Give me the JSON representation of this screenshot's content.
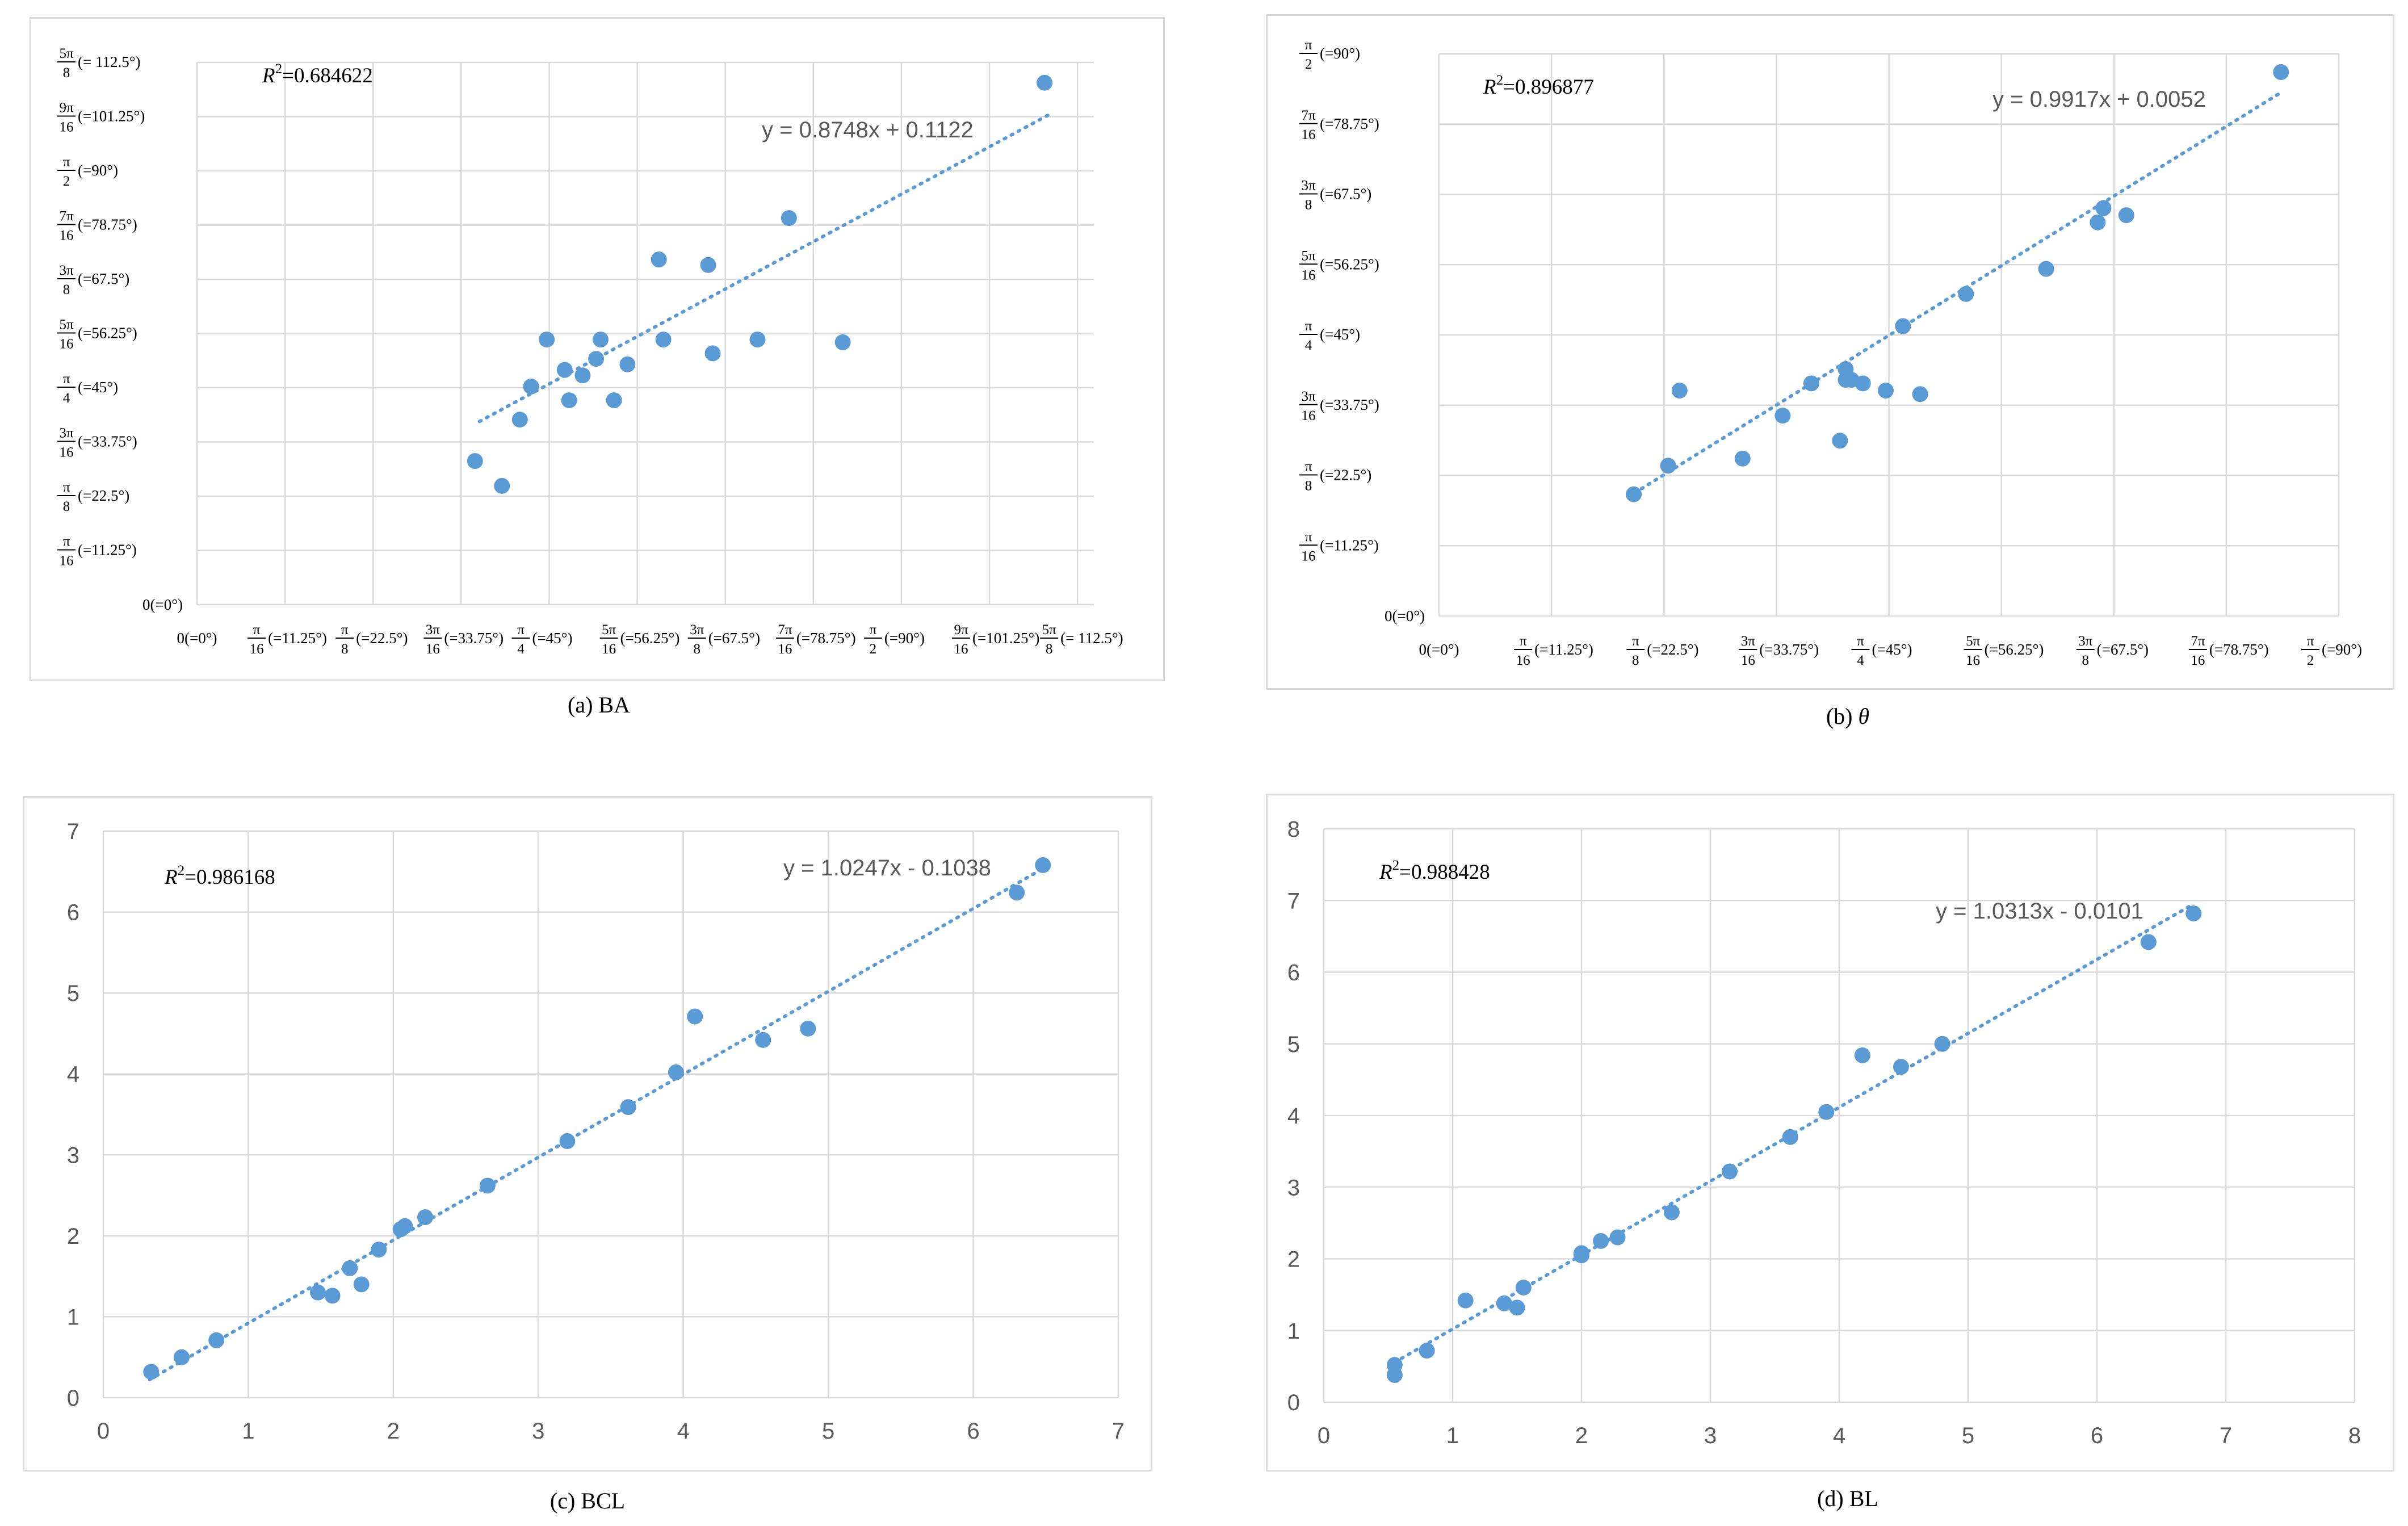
{
  "chart_data": [
    {
      "id": "a",
      "type": "scatter",
      "caption": "(a) BA",
      "caption_prefix": "(a) ",
      "caption_var": "BA",
      "caption_var_italic": false,
      "r_squared_label": "R",
      "r_squared_value": "=0.684622",
      "trendline_label": "y = 0.8748x + 0.1122",
      "trendline": {
        "slope": 0.8748,
        "intercept": 0.1122,
        "x_start": 0.63,
        "x_end": 1.9
      },
      "xlim": [
        0,
        2.0
      ],
      "ylim": [
        0,
        1.9635
      ],
      "tick_style": "fraction",
      "ticks": [
        {
          "v": 0.0,
          "num": "",
          "den": "",
          "ann": "0(=0°)"
        },
        {
          "v": 0.19635,
          "num": "π",
          "den": "16",
          "ann": "(=11.25°)"
        },
        {
          "v": 0.3927,
          "num": "π",
          "den": "8",
          "ann": "(=22.5°)"
        },
        {
          "v": 0.58905,
          "num": "3π",
          "den": "16",
          "ann": "(=33.75°)"
        },
        {
          "v": 0.7854,
          "num": "π",
          "den": "4",
          "ann": "(=45°)"
        },
        {
          "v": 0.98175,
          "num": "5π",
          "den": "16",
          "ann": "(=56.25°)"
        },
        {
          "v": 1.1781,
          "num": "3π",
          "den": "8",
          "ann": "(=67.5°)"
        },
        {
          "v": 1.37445,
          "num": "7π",
          "den": "16",
          "ann": "(=78.75°)"
        },
        {
          "v": 1.5708,
          "num": "π",
          "den": "2",
          "ann": "(=90°)"
        },
        {
          "v": 1.76715,
          "num": "9π",
          "den": "16",
          "ann": "(=101.25°)"
        },
        {
          "v": 1.9635,
          "num": "5π",
          "den": "8",
          "ann": "(= 112.5°)"
        }
      ],
      "points": {
        "x": [
          0.62,
          0.68,
          0.72,
          0.745,
          0.78,
          0.82,
          0.83,
          0.86,
          0.89,
          0.9,
          0.93,
          0.96,
          1.03,
          1.04,
          1.14,
          1.15,
          1.25,
          1.32,
          1.44,
          1.89
        ],
        "y": [
          0.52,
          0.43,
          0.67,
          0.79,
          0.96,
          0.85,
          0.74,
          0.83,
          0.89,
          0.96,
          0.74,
          0.87,
          1.25,
          0.96,
          1.23,
          0.91,
          0.96,
          1.4,
          0.95,
          1.89
        ]
      }
    },
    {
      "id": "b",
      "type": "scatter",
      "caption": "(b) θ",
      "caption_prefix": "(b) ",
      "caption_var": "θ",
      "caption_var_italic": true,
      "r_squared_label": "R",
      "r_squared_value": "=0.896877",
      "trendline_label": "y = 0.9917x + 0.0052",
      "trendline": {
        "slope": 0.9917,
        "intercept": 0.0052,
        "x_start": 0.33,
        "x_end": 1.47
      },
      "xlim": [
        0,
        1.5708
      ],
      "ylim": [
        0,
        1.5708
      ],
      "tick_style": "fraction",
      "ticks": [
        {
          "v": 0.0,
          "num": "",
          "den": "",
          "ann": "0(=0°)"
        },
        {
          "v": 0.19635,
          "num": "π",
          "den": "16",
          "ann": "(=11.25°)"
        },
        {
          "v": 0.3927,
          "num": "π",
          "den": "8",
          "ann": "(=22.5°)"
        },
        {
          "v": 0.58905,
          "num": "3π",
          "den": "16",
          "ann": "(=33.75°)"
        },
        {
          "v": 0.7854,
          "num": "π",
          "den": "4",
          "ann": "(=45°)"
        },
        {
          "v": 0.98175,
          "num": "5π",
          "den": "16",
          "ann": "(=56.25°)"
        },
        {
          "v": 1.1781,
          "num": "3π",
          "den": "8",
          "ann": "(=67.5°)"
        },
        {
          "v": 1.37445,
          "num": "7π",
          "den": "16",
          "ann": "(=78.75°)"
        },
        {
          "v": 1.5708,
          "num": "π",
          "den": "2",
          "ann": "(=90°)"
        }
      ],
      "points": {
        "x": [
          0.34,
          0.4,
          0.42,
          0.53,
          0.6,
          0.65,
          0.7,
          0.71,
          0.71,
          0.72,
          0.74,
          0.78,
          0.81,
          0.84,
          0.92,
          1.06,
          1.15,
          1.16,
          1.2,
          1.47
        ],
        "y": [
          0.34,
          0.42,
          0.63,
          0.44,
          0.56,
          0.65,
          0.49,
          0.66,
          0.69,
          0.66,
          0.65,
          0.63,
          0.81,
          0.62,
          0.9,
          0.97,
          1.1,
          1.14,
          1.12,
          1.52
        ]
      }
    },
    {
      "id": "c",
      "type": "scatter",
      "caption": "(c) BCL",
      "caption_prefix": "(c) ",
      "caption_var": "BCL",
      "caption_var_italic": false,
      "r_squared_label": "R",
      "r_squared_value": "=0.986168",
      "trendline_label": "y = 1.0247x - 0.1038",
      "trendline": {
        "slope": 1.0247,
        "intercept": -0.1038,
        "x_start": 0.32,
        "x_end": 6.48
      },
      "xlim": [
        0,
        7
      ],
      "ylim": [
        0,
        7
      ],
      "tick_style": "numeric",
      "ticks": [
        "0",
        "1",
        "2",
        "3",
        "4",
        "5",
        "6",
        "7"
      ],
      "points": {
        "x": [
          0.33,
          0.54,
          0.78,
          1.48,
          1.58,
          1.7,
          1.78,
          1.9,
          2.05,
          2.08,
          2.22,
          2.65,
          3.2,
          3.62,
          3.95,
          4.08,
          4.55,
          4.86,
          6.3,
          6.48
        ],
        "y": [
          0.32,
          0.5,
          0.71,
          1.3,
          1.26,
          1.6,
          1.4,
          1.83,
          2.08,
          2.12,
          2.23,
          2.62,
          3.17,
          3.59,
          4.02,
          4.71,
          4.42,
          4.56,
          6.24,
          6.58
        ]
      }
    },
    {
      "id": "d",
      "type": "scatter",
      "caption": "(d) BL",
      "caption_prefix": "(d) ",
      "caption_var": "BL",
      "caption_var_italic": false,
      "r_squared_label": "R",
      "r_squared_value": "=0.988428",
      "trendline_label": "y = 1.0313x - 0.0101",
      "trendline": {
        "slope": 1.0313,
        "intercept": -0.0101,
        "x_start": 0.55,
        "x_end": 6.75
      },
      "xlim": [
        0,
        8
      ],
      "ylim": [
        0,
        8
      ],
      "tick_style": "numeric",
      "ticks": [
        "0",
        "1",
        "2",
        "3",
        "4",
        "5",
        "6",
        "7",
        "8"
      ],
      "points": {
        "x": [
          0.55,
          0.55,
          0.8,
          1.1,
          1.4,
          1.5,
          1.55,
          2.0,
          2.0,
          2.15,
          2.28,
          2.7,
          3.15,
          3.62,
          3.9,
          4.18,
          4.48,
          4.8,
          6.4,
          6.75
        ],
        "y": [
          0.52,
          0.38,
          0.72,
          1.42,
          1.38,
          1.32,
          1.6,
          2.08,
          2.05,
          2.25,
          2.3,
          2.65,
          3.22,
          3.7,
          4.05,
          4.84,
          4.68,
          5.0,
          6.42,
          6.82
        ]
      }
    }
  ],
  "colors": {
    "marker": "#5b9bd5",
    "grid": "#d9d9d9",
    "frame": "#d9d9d9",
    "text": "#595959"
  },
  "icons": []
}
